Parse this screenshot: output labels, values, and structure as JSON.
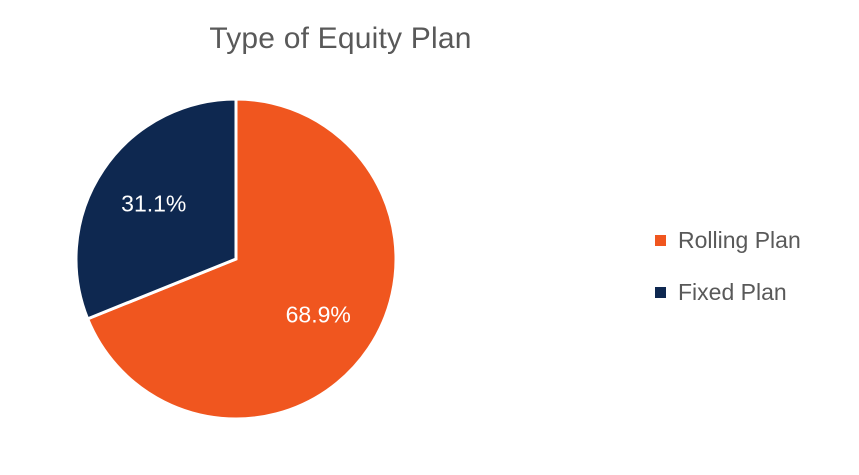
{
  "chart_data": {
    "type": "pie",
    "title": "Type of Equity Plan",
    "slices": [
      {
        "label": "Rolling Plan",
        "value": 68.9,
        "display": "68.9%",
        "color": "#F0561F"
      },
      {
        "label": "Fixed Plan",
        "value": 31.1,
        "display": "31.1%",
        "color": "#0E2850"
      }
    ],
    "start_angle_deg": 0,
    "direction": "clockwise",
    "legend_position": "right"
  }
}
